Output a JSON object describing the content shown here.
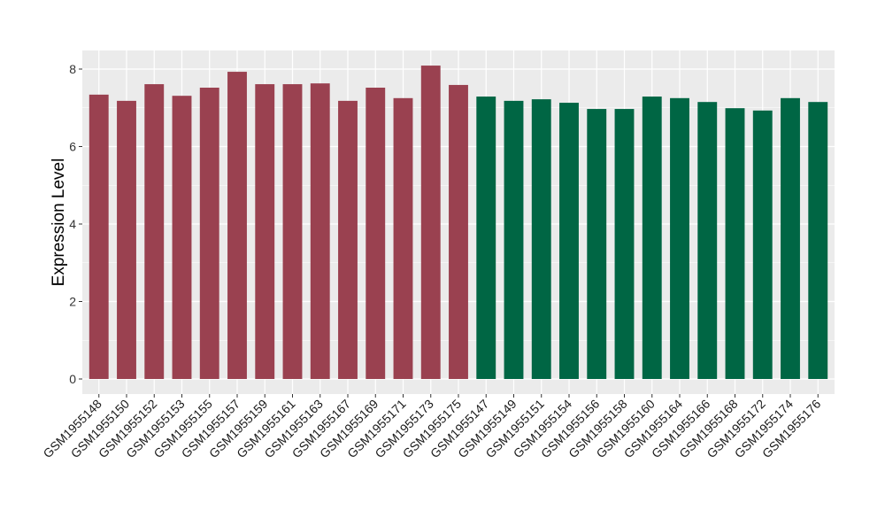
{
  "chart_data": {
    "type": "bar",
    "title": "",
    "xlabel": "",
    "ylabel": "Expression Level",
    "ylim": [
      0,
      8.4
    ],
    "yticks": [
      0,
      2,
      4,
      6,
      8
    ],
    "grid": true,
    "legend": "none",
    "categories": [
      "GSM1955148",
      "GSM1955150",
      "GSM1955152",
      "GSM1955153",
      "GSM1955155",
      "GSM1955157",
      "GSM1955159",
      "GSM1955161",
      "GSM1955163",
      "GSM1955167",
      "GSM1955169",
      "GSM1955171",
      "GSM1955173",
      "GSM1955175",
      "GSM1955147",
      "GSM1955149",
      "GSM1955151",
      "GSM1955154",
      "GSM1955156",
      "GSM1955158",
      "GSM1955160",
      "GSM1955164",
      "GSM1955166",
      "GSM1955168",
      "GSM1955172",
      "GSM1955174",
      "GSM1955176"
    ],
    "values": [
      7.34,
      7.18,
      7.61,
      7.31,
      7.52,
      7.93,
      7.61,
      7.61,
      7.63,
      7.18,
      7.52,
      7.25,
      8.09,
      7.59,
      7.29,
      7.18,
      7.22,
      7.13,
      6.97,
      6.97,
      7.29,
      7.25,
      7.15,
      6.99,
      6.93,
      7.25,
      7.15
    ],
    "groups": [
      0,
      0,
      0,
      0,
      0,
      0,
      0,
      0,
      0,
      0,
      0,
      0,
      0,
      0,
      1,
      1,
      1,
      1,
      1,
      1,
      1,
      1,
      1,
      1,
      1,
      1,
      1
    ],
    "group_colors": [
      "#9A4150",
      "#006644"
    ]
  }
}
